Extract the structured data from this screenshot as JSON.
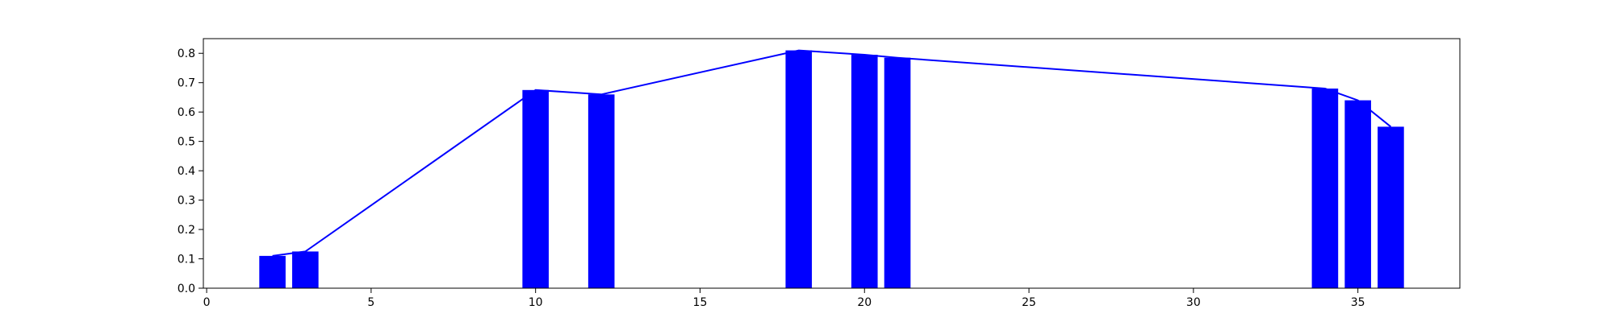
{
  "chart_data": {
    "type": "bar",
    "title": "",
    "xlabel": "",
    "ylabel": "",
    "x": [
      2,
      3,
      10,
      12,
      18,
      20,
      21,
      34,
      35,
      36
    ],
    "values": [
      0.11,
      0.125,
      0.675,
      0.66,
      0.81,
      0.795,
      0.785,
      0.68,
      0.64,
      0.55
    ],
    "bar_width": 0.8,
    "xlim": [
      -0.1,
      38.1
    ],
    "ylim": [
      0,
      0.85
    ],
    "xticks": [
      0,
      5,
      10,
      15,
      20,
      25,
      30,
      35
    ],
    "yticks": [
      0.0,
      0.1,
      0.2,
      0.3,
      0.4,
      0.5,
      0.6,
      0.7,
      0.8
    ],
    "xtick_labels": [
      "0",
      "5",
      "10",
      "15",
      "20",
      "25",
      "30",
      "35"
    ],
    "ytick_labels": [
      "0.0",
      "0.1",
      "0.2",
      "0.3",
      "0.4",
      "0.5",
      "0.6",
      "0.7",
      "0.8"
    ],
    "grid": false,
    "overlay_line": true,
    "colors": {
      "bar": "#0000ff",
      "line": "#0000ff"
    }
  }
}
